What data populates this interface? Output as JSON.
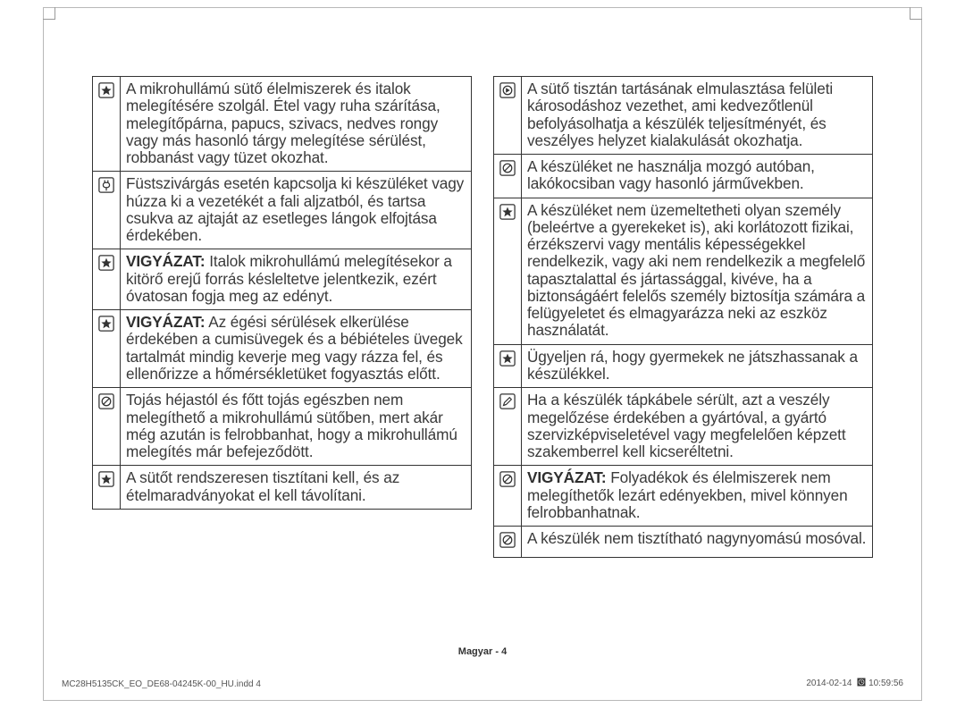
{
  "left": [
    {
      "icon": "star",
      "bold": "",
      "text": "A mikrohullámú sütő élelmiszerek és italok melegítésére szolgál. Étel vagy ruha szárítása, melegítőpárna, papucs, szivacs, nedves rongy vagy más hasonló tárgy melegítése sérülést, robbanást vagy tüzet okozhat."
    },
    {
      "icon": "plug",
      "bold": "",
      "text": "Füstszivárgás esetén kapcsolja ki készüléket vagy húzza ki a vezetékét a fali aljzatból, és tartsa csukva az ajtaját az esetleges lángok elfojtása érdekében."
    },
    {
      "icon": "star",
      "bold": "VIGYÁZAT:",
      "text": " Italok mikrohullámú melegítésekor a kitörő erejű forrás késleltetve jelentkezik, ezért óvatosan fogja meg az edényt."
    },
    {
      "icon": "star",
      "bold": "VIGYÁZAT:",
      "text": " Az égési sérülések elkerülése érdekében a cumisüvegek és a bébiételes üvegek tartalmát mindig keverje meg vagy rázza fel, és ellenőrizze a hőmérsékletüket fogyasztás előtt."
    },
    {
      "icon": "no",
      "bold": "",
      "text": "Tojás héjastól és főtt tojás egészben nem melegíthető a mikrohullámú sütőben, mert akár még azután is felrobbanhat, hogy a mikrohullámú melegítés már befejeződött."
    },
    {
      "icon": "star",
      "bold": "",
      "text": "A sütőt rendszeresen tisztítani kell, és az ételmaradványokat el kell távolítani."
    }
  ],
  "right": [
    {
      "icon": "arrow",
      "bold": "",
      "text": "A sütő tisztán tartásának elmulasztása felületi károsodáshoz vezethet, ami kedvezőtlenül befolyásolhatja a készülék teljesítményét, és veszélyes helyzet kialakulását okozhatja."
    },
    {
      "icon": "no",
      "bold": "",
      "text": "A készüléket ne használja mozgó autóban, lakókocsiban vagy hasonló járművekben."
    },
    {
      "icon": "star",
      "bold": "",
      "text": "A készüléket nem üzemeltetheti olyan személy (beleértve a gyerekeket is), aki korlátozott fizikai, érzékszervi vagy mentális képességekkel rendelkezik, vagy aki nem rendelkezik a megfelelő tapasztalattal és jártassággal, kivéve, ha a biztonságáért felelős személy biztosítja számára a felügyeletet és elmagyarázza neki az eszköz használatát."
    },
    {
      "icon": "star",
      "bold": "",
      "text": "Ügyeljen rá, hogy gyermekek ne játszhassanak a készülékkel."
    },
    {
      "icon": "pen",
      "bold": "",
      "text": "Ha a készülék tápkábele sérült, azt a veszély megelőzése érdekében a gyártóval, a gyártó szervizképviseletével vagy megfelelően képzett szakemberrel kell kicseréltetni."
    },
    {
      "icon": "no",
      "bold": "VIGYÁZAT:",
      "text": " Folyadékok és élelmiszerek nem melegíthetők lezárt edényekben, mivel könnyen felrobbanhatnak."
    },
    {
      "icon": "no",
      "bold": "",
      "text": "A készülék nem tisztítható nagynyomású mosóval."
    }
  ],
  "footer_center": "Magyar - 4",
  "footer_left": "MC28H5135CK_EO_DE68-04245K-00_HU.indd   4",
  "footer_right_date": "2014-02-14",
  "footer_right_time": "10:59:56",
  "icons_svg": {
    "star": "<svg width='18' height='18' viewBox='0 0 20 20'><rect x='1' y='1' width='18' height='18' rx='2' fill='none' stroke='#333' stroke-width='1.4'/><path d='M10 4 L11.8 8.2 L16.3 8.5 L12.8 11.3 L14 15.8 L10 13.3 L6 15.8 L7.2 11.3 L3.7 8.5 L8.2 8.2 Z' fill='#333'/></svg>",
    "plug": "<svg width='18' height='18' viewBox='0 0 20 20'><rect x='1' y='1' width='18' height='18' rx='2' fill='none' stroke='#333' stroke-width='1.4'/><rect x='6' y='7' width='8' height='6' rx='3' fill='none' stroke='#333' stroke-width='1.4'/><line x1='8' y1='4' x2='8' y2='7' stroke='#333' stroke-width='1.4'/><line x1='12' y1='4' x2='12' y2='7' stroke='#333' stroke-width='1.4'/><line x1='10' y1='13' x2='10' y2='17' stroke='#333' stroke-width='1.4'/></svg>",
    "no": "<svg width='18' height='18' viewBox='0 0 20 20'><rect x='1' y='1' width='18' height='18' rx='2' fill='none' stroke='#333' stroke-width='1.4'/><circle cx='10' cy='10' r='5.3' fill='none' stroke='#333' stroke-width='1.4'/><line x1='6.2' y1='13.8' x2='13.8' y2='6.2' stroke='#333' stroke-width='1.4'/></svg>",
    "arrow": "<svg width='18' height='18' viewBox='0 0 20 20'><rect x='1' y='1' width='18' height='18' rx='2' fill='none' stroke='#333' stroke-width='1.4'/><circle cx='10' cy='10' r='5.3' fill='none' stroke='#333' stroke-width='1.4'/><path d='M8 7 L13 10 L8 13 Z' fill='#333'/></svg>",
    "pen": "<svg width='18' height='18' viewBox='0 0 20 20'><rect x='1' y='1' width='18' height='18' rx='2' fill='none' stroke='#333' stroke-width='1.4'/><path d='M5 15 L6.2 11.5 L12.5 5.2 L14.8 7.5 L8.5 13.8 Z' fill='none' stroke='#333' stroke-width='1.3'/><line x1='5' y1='15' x2='8.5' y2='13.8' stroke='#333' stroke-width='1.3'/></svg>",
    "clock": "<svg width='10' height='10' viewBox='0 0 20 20'><rect x='1' y='1' width='18' height='18' fill='#333'/><circle cx='10' cy='10' r='6' fill='none' stroke='#fff' stroke-width='1.2'/><line x1='10' y1='10' x2='10' y2='6' stroke='#fff' stroke-width='1.2'/><line x1='10' y1='10' x2='13' y2='12' stroke='#fff' stroke-width='1.2'/></svg>"
  }
}
